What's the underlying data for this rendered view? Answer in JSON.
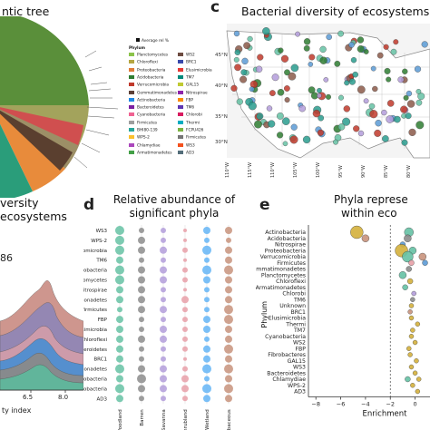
{
  "panels": {
    "a": {
      "title_fragment": "ntic tree"
    },
    "b": {
      "title_line1": "versity",
      "title_line2": "ecosystems",
      "number_fragment": "86",
      "xlabel_fragment": "ty index",
      "xticks": [
        "6.5",
        "8.0"
      ]
    },
    "c": {
      "letter": "c",
      "title": "Bacterial diversity of ecosystems ac"
    },
    "d": {
      "letter": "d",
      "title_line1": "Relative abundance of",
      "title_line2": "significant phyla"
    },
    "e": {
      "letter": "e",
      "title_line1": "Phyla represe",
      "title_line2": "within eco",
      "ylabel": "Phylum",
      "xlabel": "Enrichment"
    }
  },
  "legend": {
    "abundance_label": "Average rel %",
    "header": "Phylum",
    "col1": [
      {
        "name": "Planctomycetes",
        "color": "#8bc34a"
      },
      {
        "name": "Chloroflexi",
        "color": "#b5a642"
      },
      {
        "name": "Proteobacteria",
        "color": "#e07b39"
      },
      {
        "name": "Acidobacteria",
        "color": "#2e7d32"
      },
      {
        "name": "Verrucomicrobia",
        "color": "#c0392b"
      },
      {
        "name": "Gemmatimonadetes",
        "color": "#5d4037"
      },
      {
        "name": "Actinobacteria",
        "color": "#1e88e5"
      },
      {
        "name": "Bacteroidetes",
        "color": "#7b1fa2"
      },
      {
        "name": "Cyanobacteria",
        "color": "#f06292"
      },
      {
        "name": "Firmicutes",
        "color": "#9e9e9e"
      },
      {
        "name": "BHI80-139",
        "color": "#26a69a"
      },
      {
        "name": "WPS-2",
        "color": "#fbc02d"
      },
      {
        "name": "Chlamydiae",
        "color": "#ab47bc"
      },
      {
        "name": "Armatimonadetes",
        "color": "#43a047"
      }
    ],
    "col2": [
      {
        "name": "WS2",
        "color": "#6d4c41"
      },
      {
        "name": "BRC1",
        "color": "#3949ab"
      },
      {
        "name": "Elusimicrobia",
        "color": "#e53935"
      },
      {
        "name": "TM7",
        "color": "#00897b"
      },
      {
        "name": "GAL15",
        "color": "#c0ca33"
      },
      {
        "name": "Nitrospirae",
        "color": "#8e24aa"
      },
      {
        "name": "FBP",
        "color": "#fb8c00"
      },
      {
        "name": "TM6",
        "color": "#5e35b1"
      },
      {
        "name": "Chlorobi",
        "color": "#d81b60"
      },
      {
        "name": "Thermi",
        "color": "#00acc1"
      },
      {
        "name": "FCPU426",
        "color": "#7cb342"
      },
      {
        "name": "Firmicutes",
        "color": "#757575"
      },
      {
        "name": "WS3",
        "color": "#f4511e"
      },
      {
        "name": "AD3",
        "color": "#546e7a"
      }
    ]
  },
  "map": {
    "lat_labels": [
      "45°N",
      "40°N",
      "35°N",
      "30°N"
    ],
    "lon_labels": [
      "110°W",
      "115°W",
      "110°W",
      "105°W",
      "100°W",
      "95°W",
      "90°W",
      "85°W",
      "80°W"
    ]
  },
  "chart_data": [
    {
      "type": "scatter",
      "panel": "d",
      "title": "Relative abundance of significant phyla",
      "categories": [
        "Forest/Woodland",
        "Barren",
        "Steppe/Savanna",
        "Shrubland",
        "Wetland",
        "Herbaceous"
      ],
      "phyla": [
        "WS3",
        "WPS-2",
        "Verrucomicrobia",
        "TM6",
        "Proteobacteria",
        "Planctomycetes",
        "Nitrospirae",
        "Gemmatimonadetes",
        "Firmicutes",
        "FBP",
        "Elusimicrobia",
        "Chloroflexi",
        "Bacteroidetes",
        "BRC1",
        "Armatimonadetes",
        "Actinobacteria",
        "Acidobacteria",
        "AD3"
      ],
      "category_colors": [
        "#66c2a5",
        "#8c8c8c",
        "#b39ddb",
        "#e8a0a8",
        "#64b5f6",
        "#c8937d"
      ],
      "sizes": [
        [
          5,
          3,
          3,
          2,
          4,
          4
        ],
        [
          5,
          4,
          3,
          2,
          3,
          3
        ],
        [
          5,
          4,
          4,
          3,
          5,
          4
        ],
        [
          4,
          3,
          3,
          2,
          3,
          4
        ],
        [
          5,
          4,
          4,
          3,
          5,
          5
        ],
        [
          5,
          4,
          4,
          3,
          4,
          4
        ],
        [
          4,
          4,
          3,
          2,
          3,
          4
        ],
        [
          4,
          4,
          3,
          4,
          3,
          4
        ],
        [
          3,
          4,
          4,
          3,
          3,
          5
        ],
        [
          4,
          3,
          3,
          3,
          4,
          5
        ],
        [
          4,
          3,
          4,
          3,
          4,
          4
        ],
        [
          4,
          4,
          4,
          3,
          3,
          4
        ],
        [
          4,
          3,
          3,
          3,
          4,
          5
        ],
        [
          4,
          3,
          3,
          2,
          4,
          4
        ],
        [
          5,
          4,
          4,
          3,
          5,
          5
        ],
        [
          4,
          5,
          4,
          4,
          3,
          4
        ],
        [
          5,
          4,
          4,
          4,
          5,
          5
        ],
        [
          4,
          3,
          3,
          3,
          4,
          4
        ]
      ]
    },
    {
      "type": "scatter",
      "panel": "e",
      "ylabel": "Phylum",
      "xlabel": "Enrichment",
      "xticks": [
        -8,
        -6,
        -4,
        -2,
        0
      ],
      "xlim": [
        -8.6,
        1.2
      ],
      "refline_x": -2,
      "phyla": [
        "Actinobacteria",
        "Acidobacteria",
        "Nitrospirae",
        "Proteobacteria",
        "Verrucomicrobia",
        "Firmicutes",
        "Gemmatimonadetes",
        "Planctomycetes",
        "Chloroflexi",
        "Armatimonadetes",
        "Chlorobi",
        "TM6",
        "Unknown",
        "BRC1",
        "Elusimicrobia",
        "Thermi",
        "TM7",
        "Cyanobacteria",
        "WS2",
        "FBP",
        "Fibrobacteres",
        "GAL15",
        "WS3",
        "Bacteroidetes",
        "Chlamydiae",
        "WPS-2",
        "AD3"
      ],
      "points": [
        {
          "phylum": "Actinobacteria",
          "x": -4.7,
          "size": 7,
          "color": "#d4b13c"
        },
        {
          "phylum": "Actinobacteria",
          "x": -0.5,
          "size": 5,
          "color": "#66c2a5"
        },
        {
          "phylum": "Acidobacteria",
          "x": -4.0,
          "size": 4,
          "color": "#c8937d"
        },
        {
          "phylum": "Acidobacteria",
          "x": -0.6,
          "size": 4,
          "color": "#8c8c8c"
        },
        {
          "phylum": "Nitrospirae",
          "x": -1.0,
          "size": 3,
          "color": "#5b9bd5"
        },
        {
          "phylum": "Proteobacteria",
          "x": -1.1,
          "size": 7,
          "color": "#d4b13c"
        },
        {
          "phylum": "Proteobacteria",
          "x": -0.2,
          "size": 4,
          "color": "#66c2a5"
        },
        {
          "phylum": "Verrucomicrobia",
          "x": -0.6,
          "size": 6,
          "color": "#66c2a5"
        },
        {
          "phylum": "Verrucomicrobia",
          "x": 0.6,
          "size": 4,
          "color": "#c8937d"
        },
        {
          "phylum": "Firmicutes",
          "x": -0.3,
          "size": 3,
          "color": "#e8a0a8"
        },
        {
          "phylum": "Firmicutes",
          "x": 0.8,
          "size": 3,
          "color": "#5b9bd5"
        },
        {
          "phylum": "Gemmatimonadetes",
          "x": -0.5,
          "size": 3,
          "color": "#8c8c8c"
        },
        {
          "phylum": "Planctomycetes",
          "x": -1.0,
          "size": 4,
          "color": "#66c2a5"
        },
        {
          "phylum": "Chloroflexi",
          "x": -0.4,
          "size": 3,
          "color": "#d4b13c"
        },
        {
          "phylum": "Armatimonadetes",
          "x": -0.8,
          "size": 3,
          "color": "#66c2a5"
        },
        {
          "phylum": "Chlorobi",
          "x": -0.1,
          "size": 2.5,
          "color": "#b39ddb"
        },
        {
          "phylum": "TM6",
          "x": -0.2,
          "size": 2.5,
          "color": "#8c8c8c"
        },
        {
          "phylum": "Unknown",
          "x": -0.3,
          "size": 2.5,
          "color": "#d4b13c"
        },
        {
          "phylum": "BRC1",
          "x": -0.4,
          "size": 2.5,
          "color": "#c8937d"
        },
        {
          "phylum": "Elusimicrobia",
          "x": -0.3,
          "size": 2.5,
          "color": "#d4b13c"
        },
        {
          "phylum": "Thermi",
          "x": 0.2,
          "size": 2.5,
          "color": "#d4b13c"
        },
        {
          "phylum": "TM7",
          "x": -0.2,
          "size": 2.5,
          "color": "#d4b13c"
        },
        {
          "phylum": "Cyanobacteria",
          "x": -0.3,
          "size": 2.5,
          "color": "#d4b13c"
        },
        {
          "phylum": "WS2",
          "x": 0.0,
          "size": 2.5,
          "color": "#d4b13c"
        },
        {
          "phylum": "FBP",
          "x": -0.5,
          "size": 2.5,
          "color": "#d4b13c"
        },
        {
          "phylum": "Fibrobacteres",
          "x": -0.4,
          "size": 2.5,
          "color": "#d4b13c"
        },
        {
          "phylum": "GAL15",
          "x": 0.1,
          "size": 2.5,
          "color": "#d4b13c"
        },
        {
          "phylum": "WS3",
          "x": -0.3,
          "size": 2.5,
          "color": "#d4b13c"
        },
        {
          "phylum": "Bacteroidetes",
          "x": 0.0,
          "size": 2.5,
          "color": "#d4b13c"
        },
        {
          "phylum": "Chlamydiae",
          "x": -0.6,
          "size": 3,
          "color": "#66c2a5"
        },
        {
          "phylum": "Chlamydiae",
          "x": 0.3,
          "size": 2.5,
          "color": "#d4b13c"
        },
        {
          "phylum": "WPS-2",
          "x": -0.2,
          "size": 2.5,
          "color": "#d4b13c"
        },
        {
          "phylum": "AD3",
          "x": 0.2,
          "size": 2.5,
          "color": "#d4b13c"
        }
      ]
    }
  ]
}
